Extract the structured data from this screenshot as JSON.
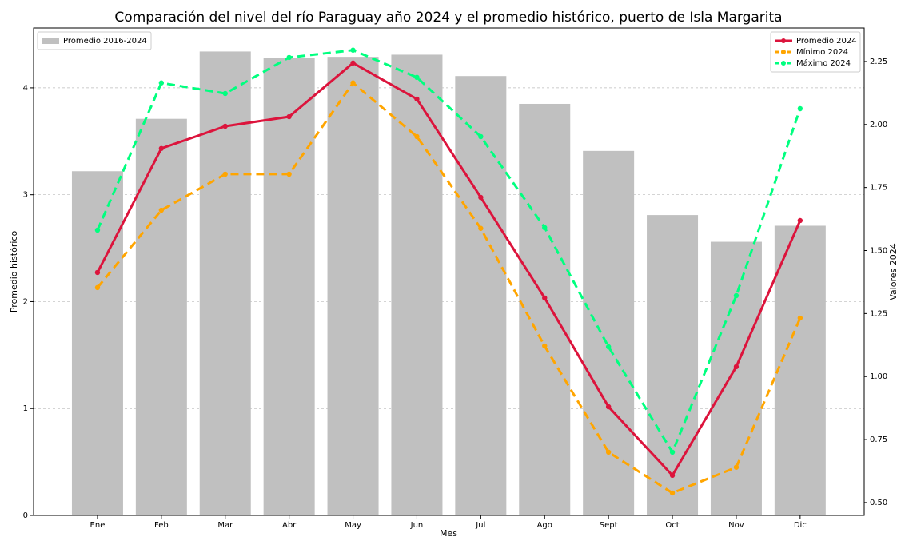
{
  "chart_data": {
    "type": "combo",
    "title": "Comparación del nivel del río Paraguay año 2024 y el promedio histórico, puerto de Isla Margarita",
    "x_label": "Mes",
    "y_label": "Promedio histórico",
    "y2_label": "Valores 2024",
    "categories": [
      "Ene",
      "Feb",
      "Mar",
      "Abr",
      "May",
      "Jun",
      "Jul",
      "Ago",
      "Sept",
      "Oct",
      "Nov",
      "Dic"
    ],
    "series": [
      {
        "name": "Promedio 2016-2024",
        "type": "bar",
        "axis": "y",
        "color": "#c0c0c0",
        "values": [
          3.22,
          3.71,
          4.34,
          4.28,
          4.29,
          4.31,
          4.11,
          3.85,
          3.41,
          2.81,
          2.56,
          2.71
        ]
      },
      {
        "name": "Promedio 2024",
        "type": "line",
        "axis": "y2",
        "color": "#dc143c",
        "dash": false,
        "values": [
          1.413,
          1.905,
          1.993,
          2.031,
          2.244,
          2.101,
          1.711,
          1.312,
          0.88,
          0.608,
          1.039,
          1.619
        ]
      },
      {
        "name": "Mínimo 2024",
        "type": "line",
        "axis": "y2",
        "color": "#ffa500",
        "dash": true,
        "values": [
          1.353,
          1.66,
          1.803,
          1.803,
          2.165,
          1.952,
          1.588,
          1.121,
          0.7,
          0.538,
          0.64,
          1.232
        ]
      },
      {
        "name": "Máximo 2024",
        "type": "line",
        "axis": "y2",
        "color": "#00ff7f",
        "dash": true,
        "values": [
          1.581,
          2.165,
          2.123,
          2.266,
          2.295,
          2.187,
          1.952,
          1.591,
          1.118,
          0.7,
          1.321,
          2.063
        ]
      }
    ],
    "ylim": [
      0,
      4.56
    ],
    "yticks": [
      0,
      1,
      2,
      3,
      4
    ],
    "y2lim": [
      0.449,
      2.383
    ],
    "y2ticks": [
      {
        "value": 0.5,
        "label": "0.50"
      },
      {
        "value": 0.75,
        "label": "0.75"
      },
      {
        "value": 1.0,
        "label": "1.00"
      },
      {
        "value": 1.25,
        "label": "1.25"
      },
      {
        "value": 1.5,
        "label": "1.50"
      },
      {
        "value": 1.75,
        "label": "1.75"
      },
      {
        "value": 2.0,
        "label": "2.00"
      },
      {
        "value": 2.25,
        "label": "2.25"
      }
    ],
    "grid": true,
    "bar_legend": "upper left",
    "line_legend": "upper right"
  }
}
